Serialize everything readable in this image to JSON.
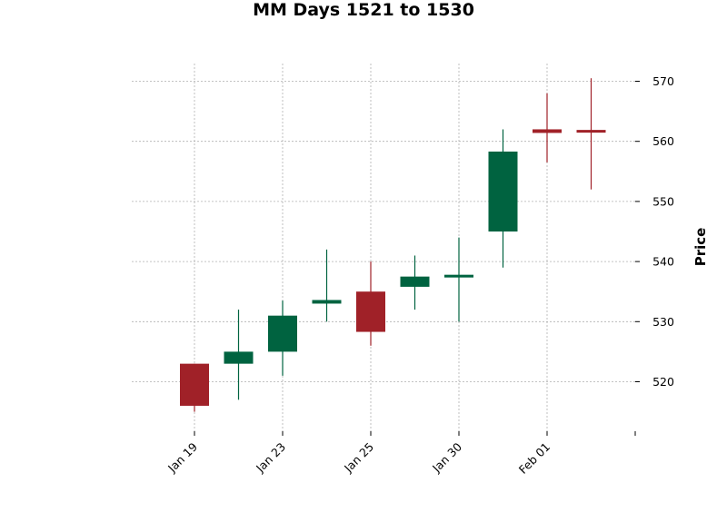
{
  "chart_data": {
    "type": "candlestick",
    "title": "MM Days 1521 to 1530",
    "ylabel": "Price",
    "xlabel": "",
    "ylim": [
      512,
      573
    ],
    "y_ticks": [
      520,
      530,
      540,
      550,
      560,
      570
    ],
    "y_axis_side": "right",
    "grid": true,
    "x_tick_labels": [
      {
        "label": "Jan 19",
        "index": 0
      },
      {
        "label": "Jan 23",
        "index": 2
      },
      {
        "label": "Jan 25",
        "index": 4
      },
      {
        "label": "Jan 30",
        "index": 6
      },
      {
        "label": "Feb 01",
        "index": 8
      },
      {
        "label": "",
        "index": 10
      }
    ],
    "up_color": "#006340",
    "down_color": "#a02128",
    "candles": [
      {
        "open": 523,
        "high": 523,
        "low": 515,
        "close": 516
      },
      {
        "open": 523,
        "high": 532,
        "low": 517,
        "close": 525
      },
      {
        "open": 525,
        "high": 533.5,
        "low": 521,
        "close": 531
      },
      {
        "open": 533,
        "high": 542,
        "low": 530,
        "close": 533.6
      },
      {
        "open": 535,
        "high": 540,
        "low": 526,
        "close": 528.3
      },
      {
        "open": 535.8,
        "high": 541,
        "low": 532,
        "close": 537.5
      },
      {
        "open": 537.4,
        "high": 544,
        "low": 530,
        "close": 537.8
      },
      {
        "open": 545,
        "high": 562,
        "low": 539,
        "close": 558.3
      },
      {
        "open": 562,
        "high": 568,
        "low": 556.5,
        "close": 561.4
      },
      {
        "open": 561.9,
        "high": 570.5,
        "low": 552,
        "close": 561.6
      }
    ]
  }
}
